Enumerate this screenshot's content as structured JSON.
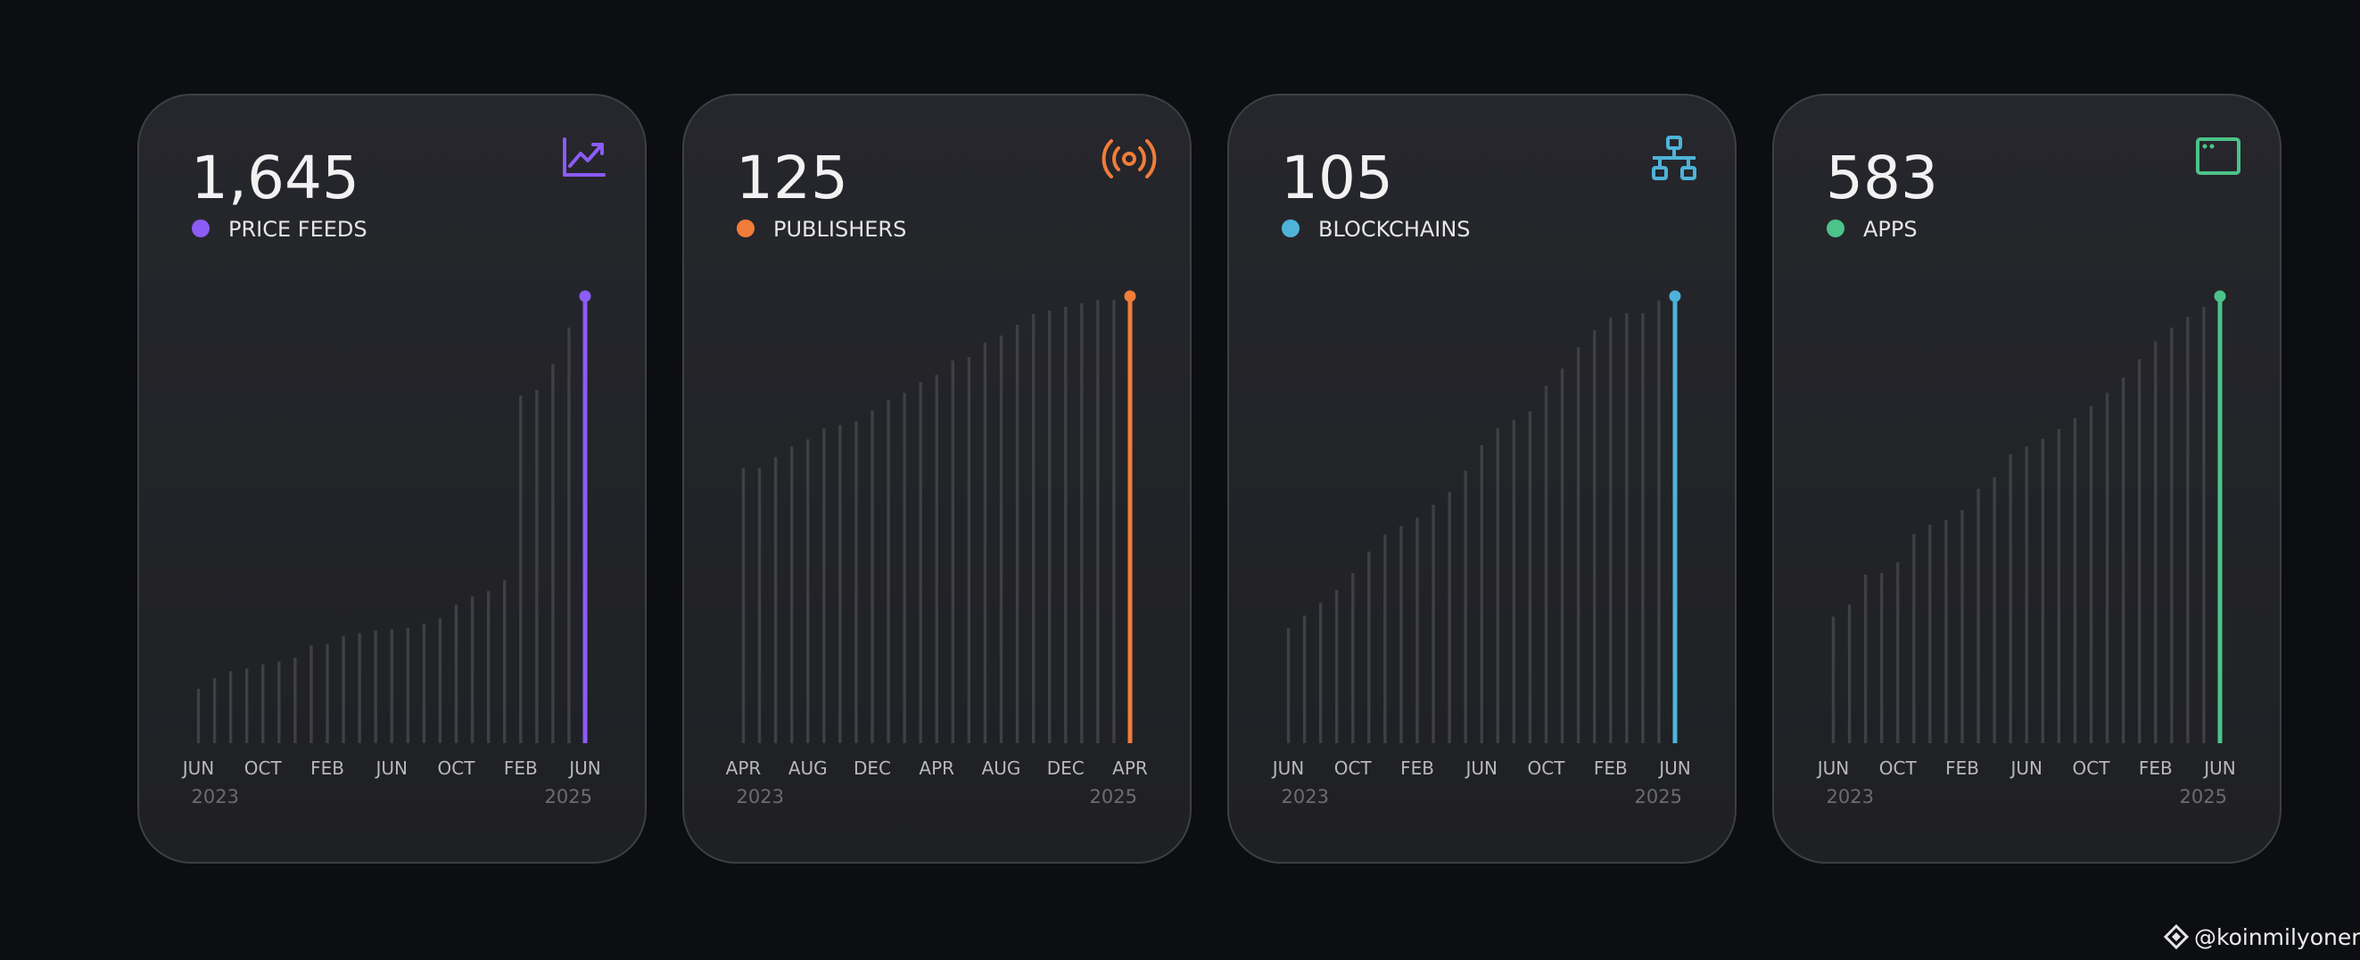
{
  "chart_data": [
    {
      "type": "bar",
      "headline": "1,645",
      "title": "PRICE FEEDS",
      "color": "#8b5cf6",
      "categories": [
        "JUN",
        null,
        null,
        null,
        "OCT",
        null,
        null,
        null,
        "FEB",
        null,
        null,
        null,
        "JUN",
        null,
        null,
        null,
        "OCT",
        null,
        null,
        null,
        "FEB",
        null,
        null,
        null,
        "JUN"
      ],
      "values": [
        200,
        240,
        265,
        275,
        290,
        300,
        315,
        360,
        365,
        395,
        405,
        415,
        420,
        425,
        440,
        460,
        510,
        540,
        560,
        600,
        1280,
        1300,
        1395,
        1530,
        1645
      ],
      "year_labels": [
        "2023",
        "2025"
      ]
    },
    {
      "type": "bar",
      "headline": "125",
      "title": "PUBLISHERS",
      "color": "#f07d3a",
      "categories": [
        "APR",
        null,
        null,
        null,
        "AUG",
        null,
        null,
        null,
        "DEC",
        null,
        null,
        null,
        "APR",
        null,
        null,
        null,
        "AUG",
        null,
        null,
        null,
        "DEC",
        null,
        null,
        null,
        "APR"
      ],
      "values": [
        77,
        77,
        80,
        83,
        85,
        88,
        89,
        90,
        93,
        96,
        98,
        101,
        103,
        107,
        108,
        112,
        114,
        117,
        120,
        121,
        122,
        123,
        124,
        124,
        125
      ],
      "year_labels": [
        "2023",
        "2025"
      ]
    },
    {
      "type": "bar",
      "headline": "105",
      "title": "BLOCKCHAINS",
      "color": "#4fb3d9",
      "categories": [
        "JUN",
        null,
        null,
        null,
        "OCT",
        null,
        null,
        null,
        "FEB",
        null,
        null,
        null,
        "JUN",
        null,
        null,
        null,
        "OCT",
        null,
        null,
        null,
        "FEB",
        null,
        null,
        null,
        "JUN"
      ],
      "values": [
        27,
        30,
        33,
        36,
        40,
        45,
        49,
        51,
        53,
        56,
        59,
        64,
        70,
        74,
        76,
        78,
        84,
        88,
        93,
        97,
        100,
        101,
        101,
        104,
        105
      ],
      "year_labels": [
        "2023",
        "2025"
      ]
    },
    {
      "type": "bar",
      "headline": "583",
      "title": "APPS",
      "color": "#4cc38a",
      "categories": [
        "JUN",
        null,
        null,
        null,
        "OCT",
        null,
        null,
        null,
        "FEB",
        null,
        null,
        null,
        "JUN",
        null,
        null,
        null,
        "OCT",
        null,
        null,
        null,
        "FEB",
        null,
        null,
        null,
        "JUN"
      ],
      "values": [
        165,
        181,
        220,
        222,
        236,
        273,
        285,
        291,
        304,
        332,
        347,
        377,
        387,
        397,
        410,
        424,
        440,
        457,
        477,
        501,
        524,
        542,
        556,
        569,
        583
      ],
      "year_labels": [
        "2023",
        "2025"
      ]
    }
  ],
  "watermark": "@koinmilyoner"
}
